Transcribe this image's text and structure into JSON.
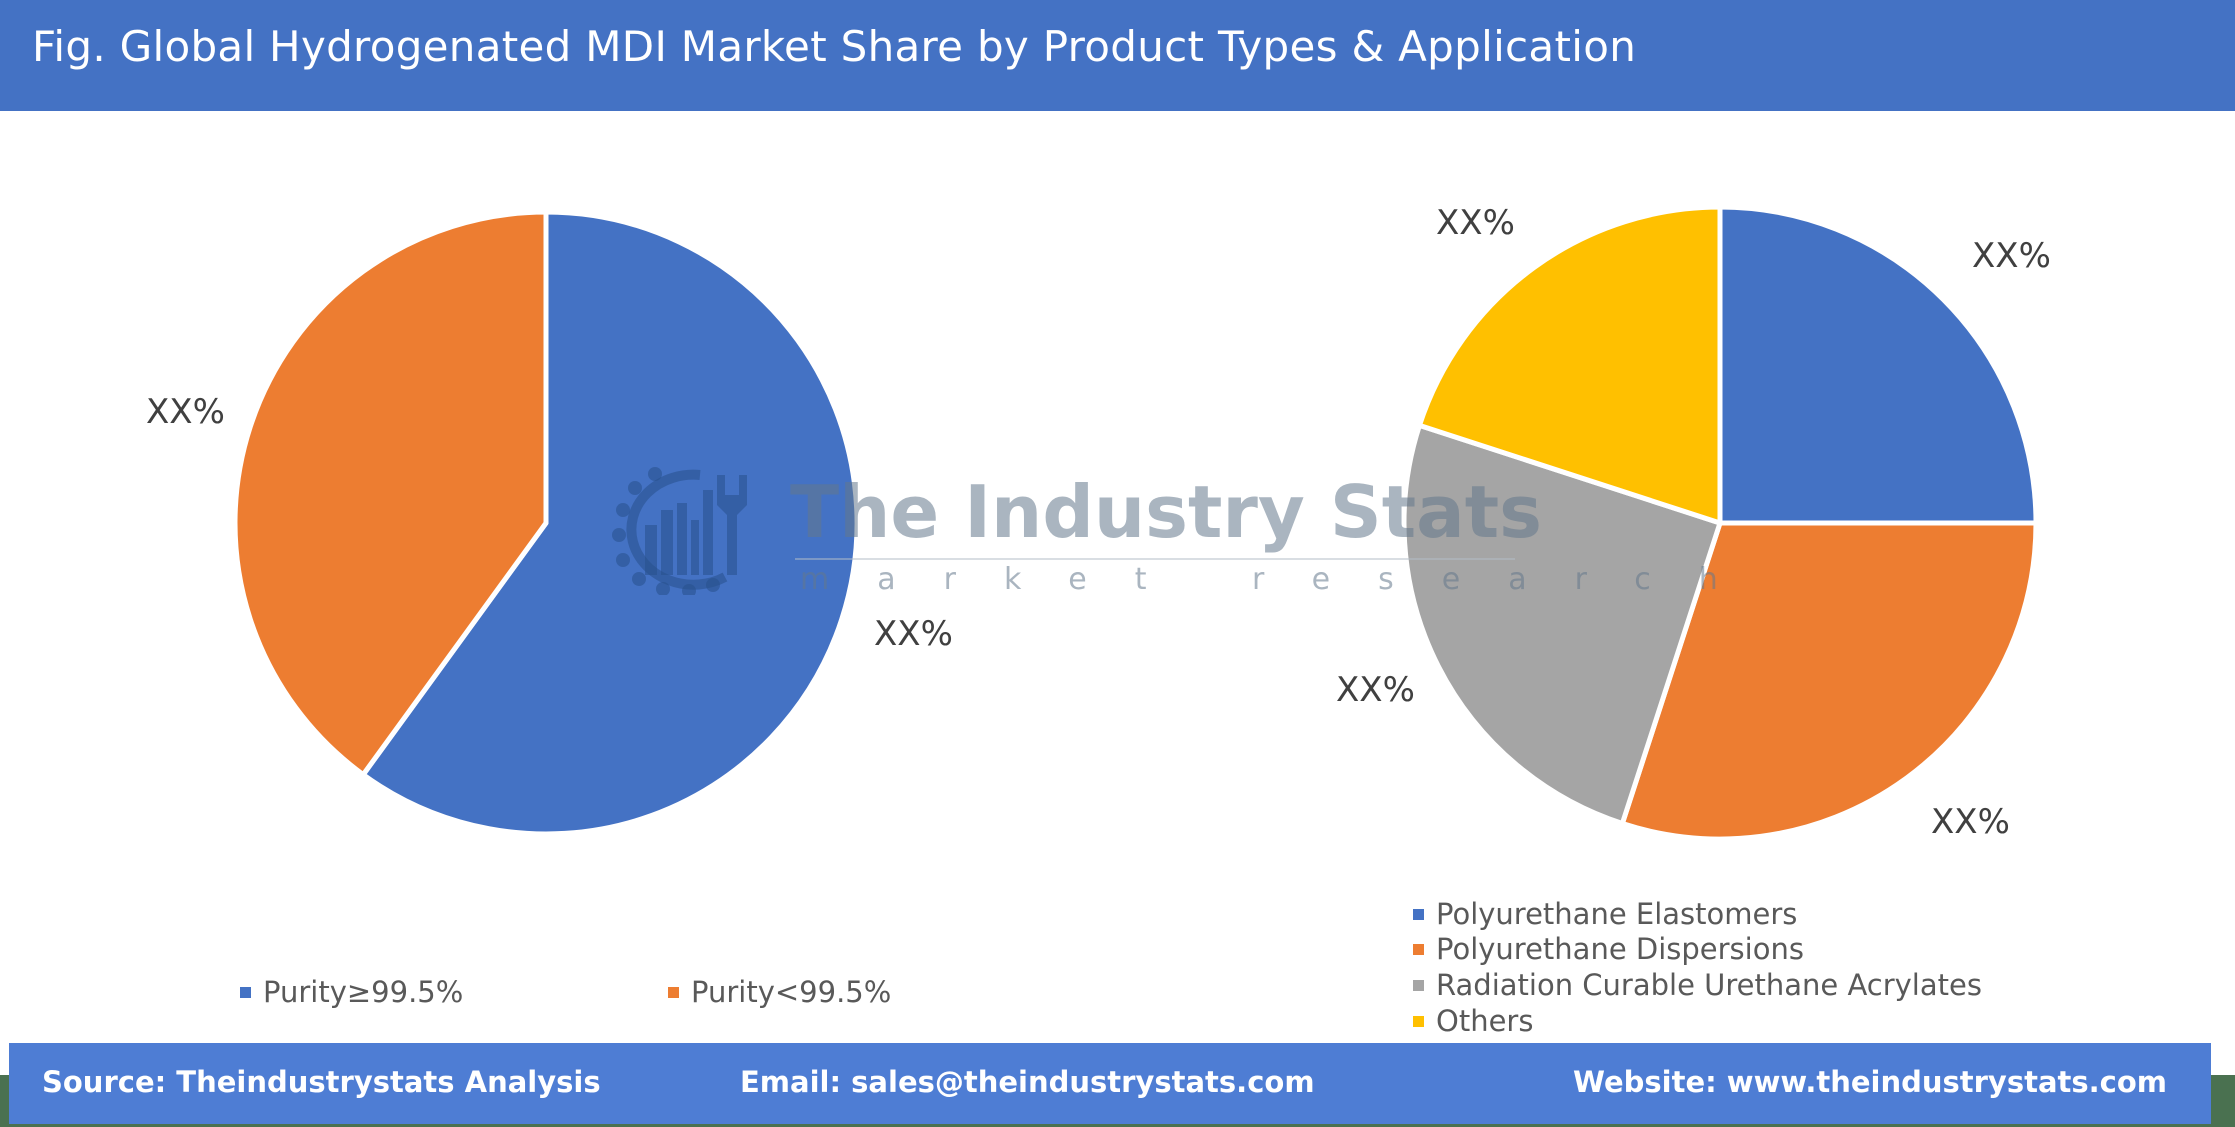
{
  "header": {
    "title": "Fig. Global Hydrogenated MDI Market Share by Product Types & Application"
  },
  "watermark": {
    "title": "The Industry Stats",
    "subtitle": "market research",
    "icon": "gear-wrench-factory-logo-icon"
  },
  "colors": {
    "header_bg": "#4472c4",
    "footer_bg": "#4e7dd4",
    "footer_shadow": "#4a7150",
    "blue": "#4472c4",
    "orange": "#ed7d31",
    "gray": "#a5a5a5",
    "yellow": "#ffc000"
  },
  "chart_data": [
    {
      "type": "pie",
      "title": "Product Types",
      "categories": [
        "Purity≥99.5%",
        "Purity<99.5%"
      ],
      "values": [
        60,
        40
      ],
      "labels": [
        "XX%",
        "XX%"
      ],
      "colors": [
        "#4472c4",
        "#ed7d31"
      ],
      "legend_position": "bottom",
      "start_angle": 0,
      "direction": "clockwise"
    },
    {
      "type": "pie",
      "title": "Application",
      "categories": [
        "Polyurethane Elastomers",
        "Polyurethane Dispersions",
        "Radiation Curable Urethane Acrylates",
        "Others"
      ],
      "values": [
        25,
        30,
        25,
        20
      ],
      "labels": [
        "XX%",
        "XX%",
        "XX%",
        "XX%"
      ],
      "colors": [
        "#4472c4",
        "#ed7d31",
        "#a5a5a5",
        "#ffc000"
      ],
      "legend_position": "bottom",
      "start_angle": 0,
      "direction": "clockwise"
    }
  ],
  "left_chart": {
    "labels": {
      "blue": "XX%",
      "orange": "XX%"
    },
    "legend": [
      {
        "label": "Purity≥99.5%",
        "color": "#4472c4"
      },
      {
        "label": "Purity<99.5%",
        "color": "#ed7d31"
      }
    ]
  },
  "right_chart": {
    "labels": {
      "blue": "XX%",
      "orange": "XX%",
      "gray": "XX%",
      "yellow": "XX%"
    },
    "legend": [
      {
        "label": "Polyurethane Elastomers",
        "color": "#4472c4"
      },
      {
        "label": "Polyurethane Dispersions",
        "color": "#ed7d31"
      },
      {
        "label": "Radiation Curable Urethane Acrylates",
        "color": "#a5a5a5"
      },
      {
        "label": "Others",
        "color": "#ffc000"
      }
    ]
  },
  "footer": {
    "source": "Source: Theindustrystats Analysis",
    "email": "Email: sales@theindustrystats.com",
    "website": "Website: www.theindustrystats.com"
  }
}
